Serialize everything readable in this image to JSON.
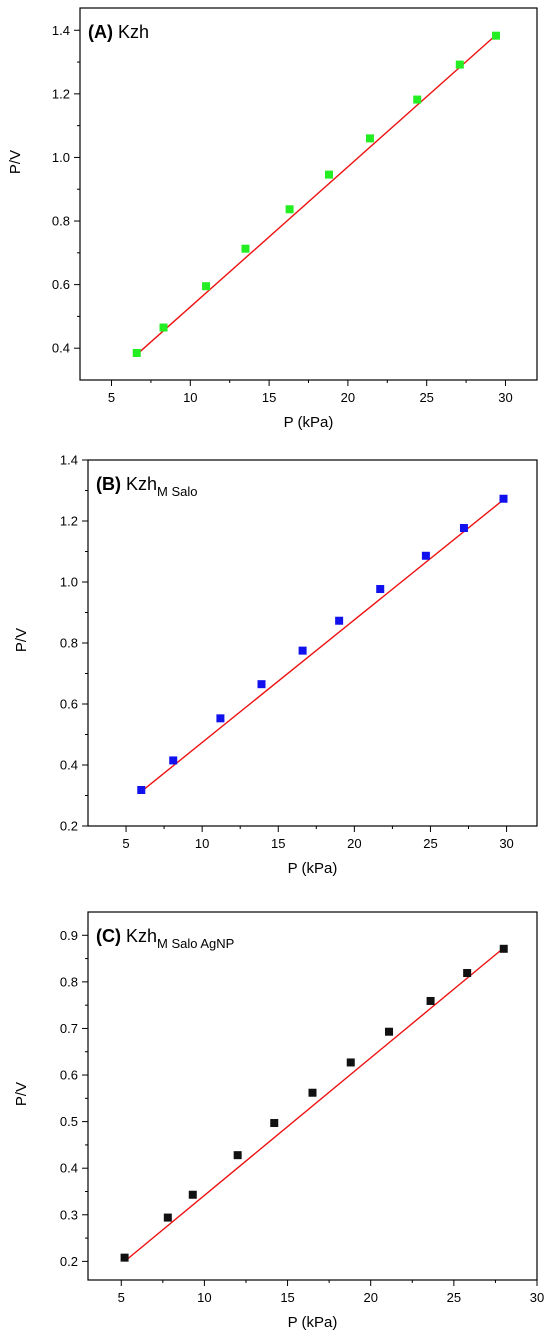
{
  "chart_data": [
    {
      "type": "scatter",
      "panel_label": "(A)",
      "title": "Kzh",
      "title_subscript": "",
      "xlabel": "P (kPa)",
      "ylabel": "P/V",
      "xlim": [
        3,
        32
      ],
      "ylim": [
        0.3,
        1.47
      ],
      "xticks": [
        5,
        10,
        15,
        20,
        25,
        30
      ],
      "xtick_labels": [
        "5",
        "10",
        "15",
        "20",
        "25",
        "30"
      ],
      "yticks": [
        0.4,
        0.6,
        0.8,
        1.0,
        1.2,
        1.4
      ],
      "ytick_labels": [
        "0.4",
        "0.6",
        "0.8",
        "1.0",
        "1.2",
        "1.4"
      ],
      "marker_color": "#22ee22",
      "fit_color": "#ee1111",
      "grid": false,
      "series": [
        {
          "x": [
            6.6,
            8.3,
            11.0,
            13.5,
            16.3,
            18.8,
            21.4,
            24.4,
            27.1,
            29.4
          ],
          "y": [
            0.385,
            0.465,
            0.595,
            0.713,
            0.837,
            0.946,
            1.06,
            1.182,
            1.292,
            1.383
          ]
        }
      ],
      "fit_line": {
        "x": [
          6.6,
          29.4
        ],
        "y": [
          0.38,
          1.385
        ]
      }
    },
    {
      "type": "scatter",
      "panel_label": "(B)",
      "title": "Kzh",
      "title_subscript": "M Salo",
      "xlabel": "P (kPa)",
      "ylabel": "P/V",
      "xlim": [
        2.5,
        32
      ],
      "ylim": [
        0.2,
        1.4
      ],
      "xticks": [
        5,
        10,
        15,
        20,
        25,
        30
      ],
      "xtick_labels": [
        "5",
        "10",
        "15",
        "20",
        "25",
        "30"
      ],
      "yticks": [
        0.2,
        0.4,
        0.6,
        0.8,
        1.0,
        1.2,
        1.4
      ],
      "ytick_labels": [
        "0.2",
        "0.4",
        "0.6",
        "0.8",
        "1.0",
        "1.2",
        "1.4"
      ],
      "marker_color": "#1111ee",
      "fit_color": "#ee1111",
      "grid": false,
      "series": [
        {
          "x": [
            6.0,
            8.1,
            11.2,
            13.9,
            16.6,
            19.0,
            21.7,
            24.7,
            27.2,
            29.8
          ],
          "y": [
            0.318,
            0.415,
            0.553,
            0.665,
            0.775,
            0.873,
            0.977,
            1.086,
            1.177,
            1.273
          ]
        }
      ],
      "fit_line": {
        "x": [
          6.0,
          29.8
        ],
        "y": [
          0.313,
          1.27
        ]
      }
    },
    {
      "type": "scatter",
      "panel_label": "(C)",
      "title": "Kzh",
      "title_subscript": "M Salo AgNP",
      "xlabel": "P (kPa)",
      "ylabel": "P/V",
      "xlim": [
        3,
        30
      ],
      "ylim": [
        0.16,
        0.95
      ],
      "xticks": [
        5,
        10,
        15,
        20,
        25,
        30
      ],
      "xtick_labels": [
        "5",
        "10",
        "15",
        "20",
        "25",
        "30"
      ],
      "yticks": [
        0.2,
        0.3,
        0.4,
        0.5,
        0.6,
        0.7,
        0.8,
        0.9
      ],
      "ytick_labels": [
        "0.2",
        "0.3",
        "0.4",
        "0.5",
        "0.6",
        "0.7",
        "0.8",
        "0.9"
      ],
      "marker_color": "#111111",
      "fit_color": "#ee1111",
      "grid": false,
      "series": [
        {
          "x": [
            5.2,
            7.8,
            9.3,
            12.0,
            14.2,
            16.5,
            18.8,
            21.1,
            23.6,
            25.8,
            28.0
          ],
          "y": [
            0.208,
            0.294,
            0.343,
            0.428,
            0.497,
            0.562,
            0.627,
            0.693,
            0.759,
            0.819,
            0.871
          ]
        }
      ],
      "fit_line": {
        "x": [
          5.2,
          28.0
        ],
        "y": [
          0.2,
          0.873
        ]
      }
    }
  ]
}
